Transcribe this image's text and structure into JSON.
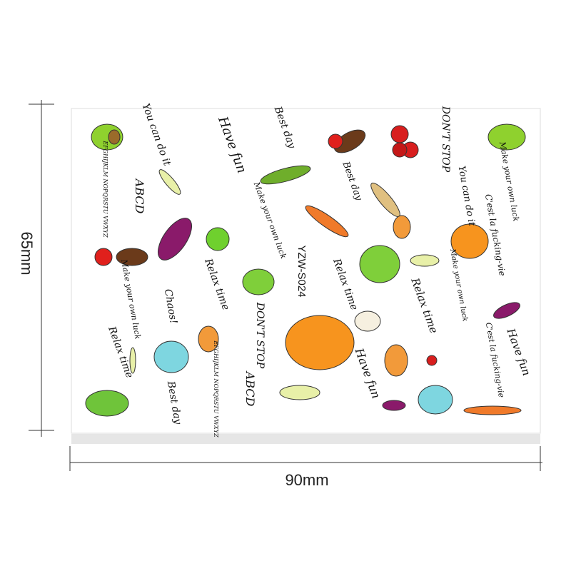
{
  "dimensions": {
    "height": "65mm",
    "width": "90mm"
  },
  "sheet": {
    "code": "YZW-S024",
    "phrases": [
      "You can do it",
      "Best day",
      "Have fun",
      "DON'T STOP",
      "Make your own luck",
      "ABCD",
      "EFGHIJKLM NOPQRSTU VWXYZ",
      "Best day",
      "You can do it",
      "Make your own luck",
      "C'est la fucking-vie",
      "Relax time",
      "Relax time",
      "Make your own luck",
      "Make your own luck",
      "Relax time",
      "Chaos!",
      "DON'T STOP",
      "Relax time",
      "Have fun",
      "Have fun",
      "C'est la fucking-vie",
      "ABCD",
      "EFGHIJKLM NOPQRSTU VWXYZ",
      "Best day"
    ]
  }
}
